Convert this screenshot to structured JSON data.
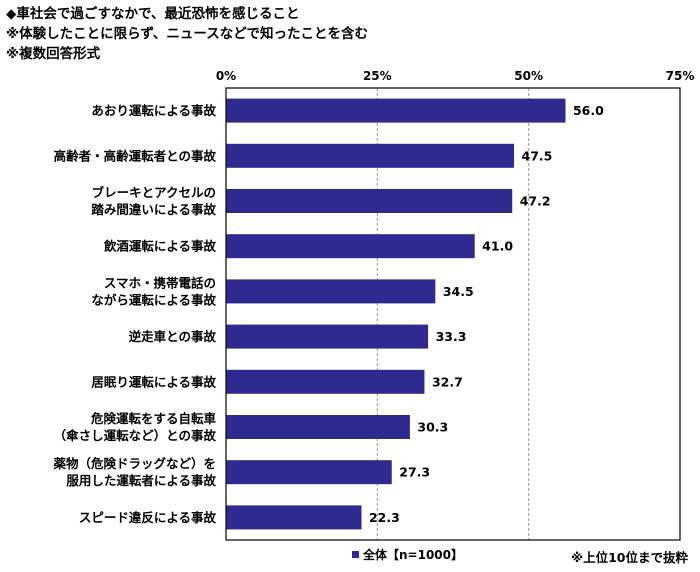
{
  "header": {
    "line1": "◆車社会で過ごすなかで、最近恐怖を感じること",
    "line2": "※体験したことに限らず、ニュースなどで知ったことを含む",
    "line3": "※複数回答形式"
  },
  "colors": {
    "bar": "#2e2a8f",
    "frame": "#000000"
  },
  "footnote": "※上位10位まで抜粋",
  "chart_data": {
    "type": "bar",
    "orientation": "horizontal",
    "title": "",
    "xlabel": "",
    "ylabel": "",
    "xlim": [
      0,
      75
    ],
    "x_ticks": [
      "0%",
      "25%",
      "50%",
      "75%"
    ],
    "x_tick_values": [
      0,
      25,
      50,
      75
    ],
    "grid": true,
    "legend": "bottom",
    "categories": [
      [
        "あおり運転による事故"
      ],
      [
        "高齢者・高齢運転者との事故"
      ],
      [
        "ブレーキとアクセルの",
        "踏み間違いによる事故"
      ],
      [
        "飲酒運転による事故"
      ],
      [
        "スマホ・携帯電話の",
        "ながら運転による事故"
      ],
      [
        "逆走車との事故"
      ],
      [
        "居眠り運転による事故"
      ],
      [
        "危険運転をする自転車",
        "（傘さし運転など）との事故"
      ],
      [
        "薬物（危険ドラッグなど）を",
        "服用した運転者による事故"
      ],
      [
        "スピード違反による事故"
      ]
    ],
    "series": [
      {
        "name": "全体【n=1000】",
        "values": [
          56.0,
          47.5,
          47.2,
          41.0,
          34.5,
          33.3,
          32.7,
          30.3,
          27.3,
          22.3
        ],
        "labels": [
          "56.0",
          "47.5",
          "47.2",
          "41.0",
          "34.5",
          "33.3",
          "32.7",
          "30.3",
          "27.3",
          "22.3"
        ]
      }
    ]
  }
}
